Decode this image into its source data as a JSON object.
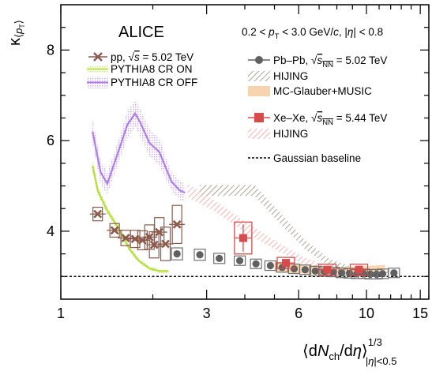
{
  "chart_data": {
    "type": "scatter",
    "experiment": "ALICE",
    "kinematics": "0.2 < pT < 3.0 GeV/c, |η| < 0.8",
    "xlabel": "⟨dNch/dη⟩^(1/3) |η|<0.5",
    "ylabel": "κ⟨pT⟩",
    "xscale": "log",
    "xlim": [
      1,
      16
    ],
    "ylim": [
      2.5,
      9
    ],
    "xticks": [
      1,
      3,
      6,
      10,
      15
    ],
    "yticks": [
      4,
      6,
      8
    ],
    "legend_placement": "top",
    "series": [
      {
        "key": "pp",
        "name": "pp, √s = 5.02 TeV",
        "kind": "points",
        "marker": "x",
        "color": "#8b5a4a",
        "x": [
          1.32,
          1.5,
          1.63,
          1.75,
          1.85,
          1.95,
          2.02,
          2.1,
          2.2,
          2.4
        ],
        "y": [
          4.38,
          4.02,
          3.85,
          3.83,
          3.8,
          3.87,
          3.7,
          3.98,
          3.72,
          4.15
        ],
        "yerr": [
          0.08,
          0.08,
          0.1,
          0.12,
          0.14,
          0.2,
          0.22,
          0.25,
          0.3,
          0.35
        ]
      },
      {
        "key": "cr_on",
        "name": "PYTHIA8 CR ON",
        "kind": "band",
        "color": "#b8e040",
        "x": [
          1.27,
          1.32,
          1.42,
          1.55,
          1.68,
          1.8,
          1.95,
          2.1,
          2.25
        ],
        "y": [
          5.45,
          4.9,
          4.45,
          4.05,
          3.6,
          3.35,
          3.18,
          3.12,
          3.12
        ],
        "yerr": [
          0.12,
          0.12,
          0.1,
          0.08,
          0.07,
          0.06,
          0.05,
          0.05,
          0.05
        ]
      },
      {
        "key": "cr_off",
        "name": "PYTHIA8 CR OFF",
        "kind": "band",
        "color": "#b07ce8",
        "x": [
          1.27,
          1.35,
          1.42,
          1.55,
          1.65,
          1.75,
          1.82,
          1.95,
          2.1,
          2.3,
          2.45,
          2.55
        ],
        "y": [
          6.2,
          5.3,
          5.05,
          5.8,
          6.35,
          6.6,
          6.4,
          5.95,
          5.75,
          5.1,
          4.9,
          4.85
        ],
        "yerr": [
          0.3,
          0.25,
          0.25,
          0.25,
          0.3,
          0.3,
          0.3,
          0.3,
          0.3,
          0.2,
          0.2,
          0.2
        ]
      },
      {
        "key": "pbpb",
        "name": "Pb–Pb, √sNN = 5.02 TeV",
        "kind": "points",
        "marker": "circle",
        "color": "#606060",
        "x": [
          2.4,
          2.85,
          3.3,
          3.85,
          4.35,
          4.85,
          5.3,
          5.8,
          6.3,
          6.8,
          7.3,
          7.8,
          8.3,
          8.8,
          9.3,
          9.8,
          10.3,
          10.8,
          11.3,
          12.3
        ],
        "y": [
          3.5,
          3.48,
          3.4,
          3.35,
          3.28,
          3.24,
          3.2,
          3.17,
          3.15,
          3.12,
          3.11,
          3.1,
          3.08,
          3.07,
          3.06,
          3.06,
          3.05,
          3.05,
          3.06,
          3.08
        ],
        "yerr": [
          0.08,
          0.07,
          0.06,
          0.05,
          0.04,
          0.04,
          0.03,
          0.03,
          0.03,
          0.03,
          0.02,
          0.02,
          0.02,
          0.02,
          0.02,
          0.02,
          0.02,
          0.02,
          0.02,
          0.02
        ]
      },
      {
        "key": "hijing_pb",
        "name": "HIJING",
        "kind": "band",
        "color": "#9a8c7e",
        "x": [
          2.85,
          3.5,
          4.3,
          5.2,
          6.3,
          7.6,
          9.0,
          10.5,
          12.0
        ],
        "y": [
          4.9,
          4.9,
          4.9,
          4.3,
          3.7,
          3.3,
          3.15,
          3.1,
          3.1
        ],
        "yerr": [
          0.12,
          0.12,
          0.12,
          0.12,
          0.1,
          0.08,
          0.06,
          0.05,
          0.05
        ]
      },
      {
        "key": "music",
        "name": "MC-Glauber+MUSIC",
        "kind": "band",
        "color": "#f6c99a",
        "x": [
          5.0,
          6.0,
          7.0,
          8.0,
          9.0,
          10.0,
          11.0,
          11.5
        ],
        "y": [
          3.2,
          3.17,
          3.14,
          3.12,
          3.12,
          3.13,
          3.15,
          3.16
        ],
        "yerr": [
          0.1,
          0.1,
          0.1,
          0.1,
          0.1,
          0.1,
          0.1,
          0.1
        ]
      },
      {
        "key": "xexe",
        "name": "Xe–Xe, √sNN = 5.44 TeV",
        "kind": "points",
        "marker": "square",
        "color": "#d94b4b",
        "x": [
          3.95,
          5.45,
          7.45,
          9.45
        ],
        "y": [
          3.85,
          3.3,
          3.15,
          3.15
        ],
        "yerr": [
          0.3,
          0.06,
          0.04,
          0.04
        ]
      },
      {
        "key": "hijing_xe",
        "name": "HIJING",
        "kind": "band",
        "color": "#f3a0a0",
        "x": [
          2.6,
          3.2,
          4.0,
          5.0,
          6.2,
          7.6,
          9.0
        ],
        "y": [
          4.9,
          4.55,
          4.1,
          3.7,
          3.35,
          3.15,
          3.1
        ],
        "yerr": [
          0.15,
          0.12,
          0.12,
          0.1,
          0.08,
          0.06,
          0.05
        ]
      },
      {
        "key": "gauss",
        "name": "Gaussian baseline",
        "kind": "line",
        "dash": true,
        "color": "#000000",
        "x": [
          1,
          16
        ],
        "y": [
          3,
          3
        ]
      }
    ]
  }
}
